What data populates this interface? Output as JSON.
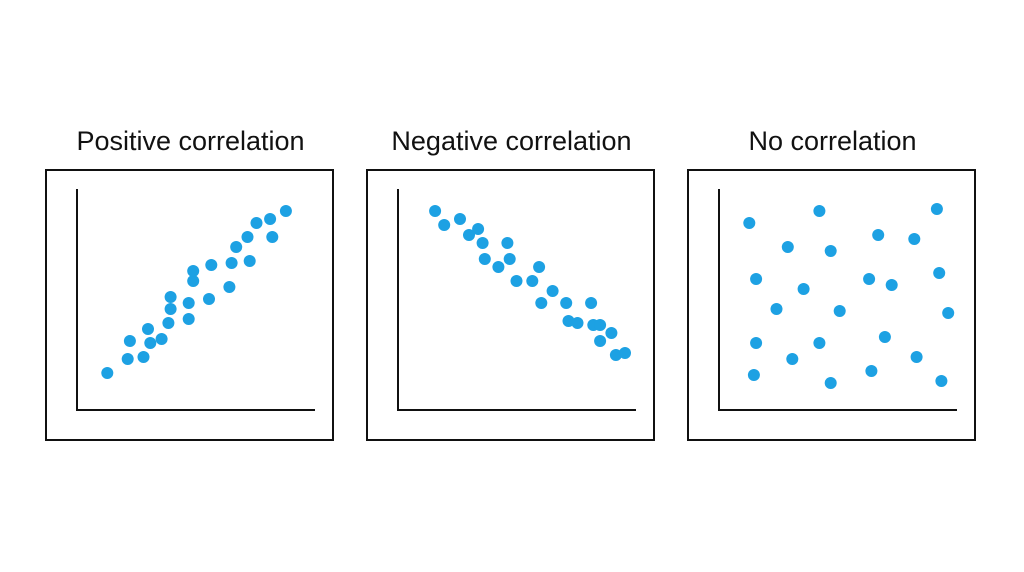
{
  "colors": {
    "point": "#1da1e3",
    "axis": "#111111",
    "frame": "#111111",
    "background": "#ffffff"
  },
  "chart_data": [
    {
      "type": "scatter",
      "title": "Positive correlation",
      "xlabel": "",
      "ylabel": "",
      "xlim": [
        0,
        100
      ],
      "ylim": [
        0,
        100
      ],
      "grid": false,
      "points": [
        [
          9,
          12
        ],
        [
          18,
          19
        ],
        [
          19,
          28
        ],
        [
          25,
          20
        ],
        [
          27,
          34
        ],
        [
          28,
          27
        ],
        [
          33,
          29
        ],
        [
          36,
          37
        ],
        [
          37,
          44
        ],
        [
          37,
          50
        ],
        [
          45,
          39
        ],
        [
          45,
          47
        ],
        [
          47,
          58
        ],
        [
          47,
          63
        ],
        [
          54,
          49
        ],
        [
          55,
          66
        ],
        [
          63,
          55
        ],
        [
          64,
          67
        ],
        [
          66,
          75
        ],
        [
          72,
          68
        ],
        [
          71,
          80
        ],
        [
          75,
          87
        ],
        [
          81,
          89
        ],
        [
          82,
          80
        ],
        [
          88,
          93
        ]
      ]
    },
    {
      "type": "scatter",
      "title": "Negative correlation",
      "xlabel": "",
      "ylabel": "",
      "xlim": [
        0,
        100
      ],
      "ylim": [
        0,
        100
      ],
      "grid": false,
      "points": [
        [
          12,
          93
        ],
        [
          16,
          86
        ],
        [
          23,
          89
        ],
        [
          27,
          81
        ],
        [
          31,
          84
        ],
        [
          33,
          77
        ],
        [
          34,
          69
        ],
        [
          40,
          65
        ],
        [
          44,
          77
        ],
        [
          45,
          69
        ],
        [
          48,
          58
        ],
        [
          55,
          58
        ],
        [
          58,
          65
        ],
        [
          59,
          47
        ],
        [
          64,
          53
        ],
        [
          70,
          47
        ],
        [
          71,
          38
        ],
        [
          75,
          37
        ],
        [
          81,
          47
        ],
        [
          82,
          36
        ],
        [
          85,
          36
        ],
        [
          85,
          28
        ],
        [
          90,
          32
        ],
        [
          92,
          21
        ],
        [
          96,
          22
        ]
      ]
    },
    {
      "type": "scatter",
      "title": "No correlation",
      "xlabel": "",
      "ylabel": "",
      "xlim": [
        0,
        100
      ],
      "ylim": [
        0,
        100
      ],
      "grid": false,
      "points": [
        [
          9,
          87
        ],
        [
          11,
          11
        ],
        [
          12,
          27
        ],
        [
          12,
          59
        ],
        [
          21,
          44
        ],
        [
          26,
          75
        ],
        [
          28,
          19
        ],
        [
          33,
          54
        ],
        [
          40,
          27
        ],
        [
          40,
          93
        ],
        [
          45,
          7
        ],
        [
          45,
          73
        ],
        [
          49,
          43
        ],
        [
          62,
          59
        ],
        [
          63,
          13
        ],
        [
          66,
          81
        ],
        [
          69,
          30
        ],
        [
          72,
          56
        ],
        [
          82,
          79
        ],
        [
          83,
          20
        ],
        [
          92,
          94
        ],
        [
          93,
          62
        ],
        [
          94,
          8
        ],
        [
          97,
          42
        ]
      ]
    }
  ]
}
